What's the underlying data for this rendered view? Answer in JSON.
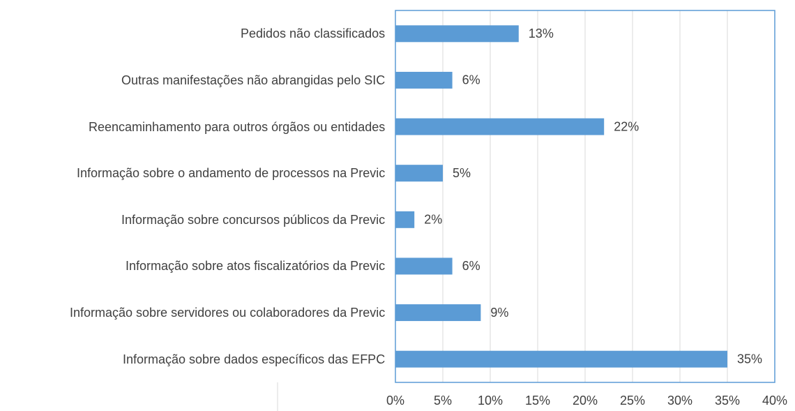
{
  "chart_data": {
    "type": "bar",
    "orientation": "horizontal",
    "categories": [
      "Pedidos não classificados",
      "Outras manifestações não abrangidas pelo SIC",
      "Reencaminhamento para outros órgãos ou entidades",
      "Informação sobre o andamento de processos na Previc",
      "Informação sobre concursos públicos da Previc",
      "Informação sobre atos fiscalizatórios da Previc",
      "Informação sobre servidores ou colaboradores da Previc",
      "Informação sobre dados específicos das EFPC"
    ],
    "values": [
      13,
      6,
      22,
      5,
      2,
      6,
      9,
      35
    ],
    "value_labels": [
      "13%",
      "6%",
      "22%",
      "5%",
      "2%",
      "6%",
      "9%",
      "35%"
    ],
    "color": "#5b9bd5",
    "xlim": [
      0,
      40
    ],
    "xticks": [
      {
        "value": 0,
        "label": "0%"
      },
      {
        "value": 5,
        "label": "5%"
      },
      {
        "value": 10,
        "label": "10%"
      },
      {
        "value": 15,
        "label": "15%"
      },
      {
        "value": 20,
        "label": "20%"
      },
      {
        "value": 25,
        "label": "25%"
      },
      {
        "value": 30,
        "label": "30%"
      },
      {
        "value": 35,
        "label": "35%"
      },
      {
        "value": 40,
        "label": "40%"
      }
    ],
    "grid": true
  }
}
